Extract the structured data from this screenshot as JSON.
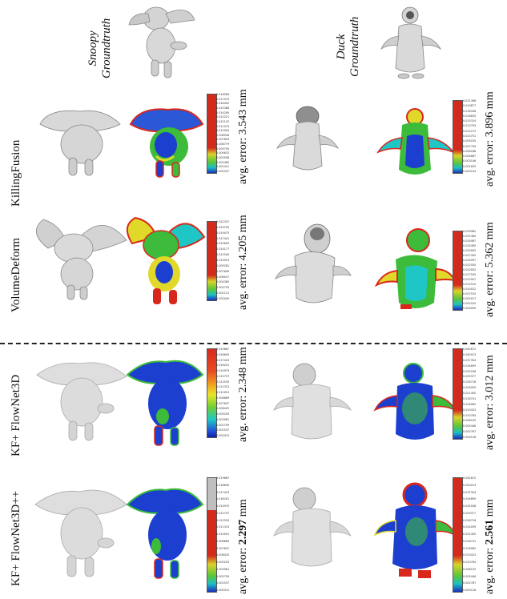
{
  "columns": {
    "snoopy": {
      "name": "Snoopy",
      "sub": "Groundtruth"
    },
    "duck": {
      "name": "Duck",
      "sub": "Groundtruth"
    }
  },
  "rows": [
    {
      "method": "KillingFusion",
      "snoopy_error": "avg. error: 3.543 mm",
      "duck_error": "avg. error: 3.896 mm"
    },
    {
      "method": "VolumeDeform",
      "snoopy_error": "avg. error: 4.205 mm",
      "duck_error": "avg. error: 5.362 mm"
    },
    {
      "method": "KF+ FlowNet3D",
      "snoopy_error": "avg. error: 2.348 mm",
      "duck_error": "avg. error: 3.012 mm"
    },
    {
      "method": "KF+ FlowNet3D++",
      "snoopy_error_prefix": "avg. error: ",
      "snoopy_error_bold": "2.297",
      "snoopy_error_suffix": " mm",
      "duck_error_prefix": "avg. error: ",
      "duck_error_bold": "2.561",
      "duck_error_suffix": " mm"
    }
  ],
  "colorbar_ticks": {
    "kf_snoopy": [
      "0.018589",
      "0.017515",
      "0.016442",
      "0.015368",
      "0.014295",
      "0.013221",
      "0.012147",
      "0.011074",
      "0.010000",
      "0.008926",
      "0.007853",
      "0.006779",
      "0.005705",
      "0.004632",
      "0.003558",
      "0.002485",
      "0.001411",
      "0.000337"
    ],
    "kf_duck": [
      "0.021398",
      "0.019877",
      "0.018356",
      "0.016835",
      "0.015314",
      "0.013793",
      "0.012272",
      "0.010751",
      "0.009230",
      "0.007709",
      "0.006188",
      "0.004667",
      "0.003146",
      "0.001625",
      "0.000104"
    ],
    "vd_snoopy": [
      "0.022337",
      "0.020705",
      "0.019073",
      "0.017441",
      "0.015809",
      "0.014177",
      "0.012545",
      "0.010913",
      "0.009281",
      "0.007649",
      "0.006017",
      "0.004385",
      "0.002753",
      "0.001121",
      "0.000000"
    ],
    "vd_duck": [
      "0.039982",
      "0.037485",
      "0.034987",
      "0.032490",
      "0.029992",
      "0.027495",
      "0.024997",
      "0.022500",
      "0.020002",
      "0.017505",
      "0.015007",
      "0.012510",
      "0.010012",
      "0.007515",
      "0.005017",
      "0.002520",
      "0.000000"
    ],
    "fn_snoopy": [
      "0.019867",
      "0.018645",
      "0.017423",
      "0.016201",
      "0.014979",
      "0.013757",
      "0.012535",
      "0.011313",
      "0.010091",
      "0.008869",
      "0.007647",
      "0.006425",
      "0.005203",
      "0.003981",
      "0.002759",
      "0.001537",
      "0.000315"
    ],
    "fn_duck": [
      "0.042672",
      "0.040013",
      "0.037354",
      "0.034695",
      "0.032036",
      "0.029377",
      "0.026718",
      "0.024059",
      "0.021400",
      "0.018741",
      "0.016082",
      "0.013423",
      "0.010764",
      "0.008105",
      "0.005446",
      "0.002787",
      "0.000128"
    ],
    "fnpp_snoopy": [
      "0.019867",
      "0.018645",
      "0.017423",
      "0.016201",
      "0.014979",
      "0.013757",
      "0.012535",
      "0.011313",
      "0.010091",
      "0.008869",
      "0.007647",
      "0.006425",
      "0.005203",
      "0.003981",
      "0.002759",
      "0.001537",
      "0.000315"
    ],
    "fnpp_duck": [
      "0.042672",
      "0.040013",
      "0.037354",
      "0.034695",
      "0.032036",
      "0.029377",
      "0.026718",
      "0.024059",
      "0.021400",
      "0.018741",
      "0.016082",
      "0.013423",
      "0.010764",
      "0.008105",
      "0.005446",
      "0.002787",
      "0.000128"
    ]
  },
  "colors": {
    "mesh_grey": "#d6d6d6",
    "mesh_shadow": "#9a9a9a",
    "error_blue": "#1c3fcf",
    "error_green": "#3dbb3a",
    "error_yellow": "#e0d92a",
    "error_red": "#d8281e"
  }
}
